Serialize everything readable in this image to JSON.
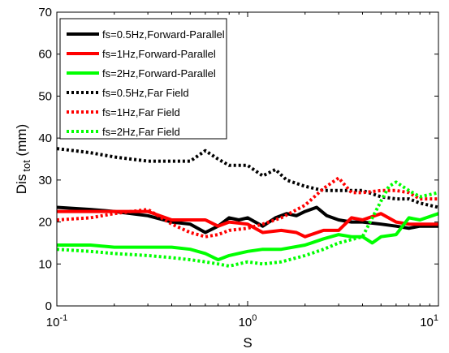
{
  "chart_data": {
    "type": "line",
    "xlabel": "S",
    "ylabel": "Dis",
    "ylabel_subscript": "tot",
    "ylabel_unit": " (mm)",
    "xscale": "log",
    "xlim": [
      0.1,
      10
    ],
    "ylim": [
      0,
      70
    ],
    "x_ticks": [
      {
        "value": 0.1,
        "base": "10",
        "exp": "-1"
      },
      {
        "value": 1,
        "base": "10",
        "exp": "0"
      },
      {
        "value": 10,
        "base": "10",
        "exp": "1"
      }
    ],
    "y_ticks": [
      0,
      10,
      20,
      30,
      40,
      50,
      60,
      70
    ],
    "grid": false,
    "legend_position": "top-left",
    "series": [
      {
        "name": "fs=0.5Hz,Forward-Parallel",
        "color": "#000000",
        "style": "solid",
        "x": [
          0.1,
          0.15,
          0.2,
          0.3,
          0.4,
          0.5,
          0.6,
          0.7,
          0.8,
          0.9,
          1.0,
          1.2,
          1.4,
          1.6,
          1.8,
          2.0,
          2.3,
          2.6,
          3.0,
          3.5,
          4.0,
          5.0,
          6.0,
          7.0,
          8.0,
          10.0
        ],
        "y": [
          23.5,
          23,
          22.5,
          21.5,
          20,
          19.5,
          17.5,
          19,
          21,
          20.5,
          21,
          19,
          21,
          22,
          21.5,
          22.5,
          23.5,
          21.5,
          20.5,
          20,
          20,
          19.5,
          19,
          18.5,
          19,
          19
        ]
      },
      {
        "name": "fs=1Hz,Forward-Parallel",
        "color": "#ff0000",
        "style": "solid",
        "x": [
          0.1,
          0.15,
          0.2,
          0.3,
          0.4,
          0.5,
          0.6,
          0.7,
          0.8,
          1.0,
          1.2,
          1.5,
          1.8,
          2.0,
          2.5,
          3.0,
          3.5,
          4.0,
          5.0,
          6.0,
          7.0,
          8.0,
          10.0
        ],
        "y": [
          22.5,
          22.5,
          22.5,
          22.5,
          20.5,
          20.5,
          20.5,
          19,
          20,
          19.5,
          17.5,
          18,
          17.5,
          16.5,
          18,
          18,
          21,
          20.5,
          22,
          20,
          19.5,
          19.5,
          19.5
        ]
      },
      {
        "name": "fs=2Hz,Forward-Parallel",
        "color": "#00ff00",
        "style": "solid",
        "x": [
          0.1,
          0.15,
          0.2,
          0.3,
          0.4,
          0.5,
          0.6,
          0.7,
          0.8,
          1.0,
          1.2,
          1.5,
          2.0,
          2.5,
          3.0,
          3.5,
          4.0,
          4.5,
          5.0,
          6.0,
          7.0,
          8.0,
          10.0
        ],
        "y": [
          14.5,
          14.5,
          14,
          14,
          14,
          13.5,
          12.5,
          11,
          12,
          13,
          13.5,
          13.5,
          14.5,
          16,
          17,
          16.5,
          16.5,
          15,
          16.5,
          17,
          21,
          20.5,
          22
        ]
      },
      {
        "name": "fs=0.5Hz,Far Field",
        "color": "#000000",
        "style": "dotted",
        "x": [
          0.1,
          0.15,
          0.2,
          0.3,
          0.4,
          0.5,
          0.6,
          0.7,
          0.8,
          1.0,
          1.2,
          1.4,
          1.6,
          2.0,
          2.5,
          3.0,
          4.0,
          5.0,
          6.0,
          7.0,
          8.0,
          10.0
        ],
        "y": [
          37.5,
          36.5,
          35.5,
          34.5,
          34.5,
          34.5,
          37,
          35,
          33.5,
          33.5,
          31,
          32.5,
          30,
          28.5,
          27.5,
          27.5,
          27.5,
          26,
          25.5,
          25.5,
          24.5,
          23.5
        ]
      },
      {
        "name": "fs=1Hz,Far Field",
        "color": "#ff0000",
        "style": "dotted",
        "x": [
          0.1,
          0.15,
          0.2,
          0.3,
          0.4,
          0.5,
          0.6,
          0.7,
          0.8,
          1.0,
          1.2,
          1.5,
          2.0,
          2.5,
          3.0,
          3.5,
          4.0,
          5.0,
          6.0,
          7.0,
          8.0,
          10.0
        ],
        "y": [
          20.5,
          21,
          22,
          23,
          19.5,
          17.5,
          16.5,
          17,
          18,
          18.5,
          19.5,
          21,
          24,
          28,
          30.5,
          27,
          27,
          27.5,
          27.5,
          27,
          25.5,
          25.5
        ]
      },
      {
        "name": "fs=2Hz,Far Field",
        "color": "#00ff00",
        "style": "dotted",
        "x": [
          0.1,
          0.15,
          0.2,
          0.3,
          0.4,
          0.5,
          0.6,
          0.7,
          0.8,
          1.0,
          1.2,
          1.5,
          2.0,
          2.5,
          3.0,
          4.0,
          5.0,
          5.5,
          6.0,
          7.0,
          8.0,
          10.0
        ],
        "y": [
          13.5,
          13,
          12.5,
          12,
          11.5,
          11,
          10.5,
          10,
          9.5,
          10.5,
          10,
          10.5,
          12,
          13.5,
          15,
          16.5,
          25,
          28.5,
          29.5,
          27.5,
          26,
          27
        ]
      }
    ]
  }
}
